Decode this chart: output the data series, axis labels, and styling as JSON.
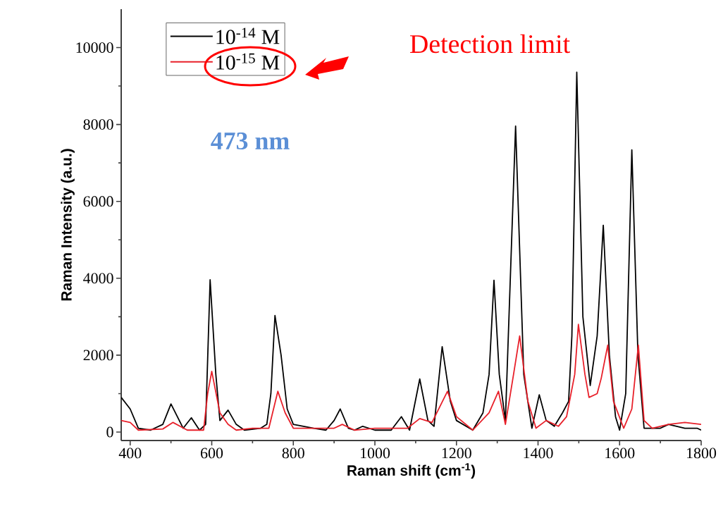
{
  "chart_data": {
    "type": "line",
    "xlabel": "Raman shift (cm$^{-1}$)",
    "ylabel": "Raman Intensity (a.u.)",
    "xlim": [
      378,
      1800
    ],
    "ylim": [
      -220,
      11000
    ],
    "xticks": [
      400,
      600,
      800,
      1000,
      1200,
      1400,
      1600,
      1800
    ],
    "yticks": [
      0,
      2000,
      4000,
      6000,
      8000,
      10000
    ],
    "grid": false,
    "legend": "top left",
    "annotations": [
      "473 nm",
      "Detection limit"
    ],
    "series": [
      {
        "name": "10$^{-14}$ M",
        "color": "#000000",
        "x": [
          378,
          400,
          420,
          450,
          480,
          500,
          530,
          550,
          570,
          585,
          596,
          610,
          620,
          640,
          660,
          680,
          720,
          735,
          745,
          755,
          770,
          785,
          800,
          850,
          880,
          900,
          915,
          935,
          950,
          970,
          1000,
          1040,
          1065,
          1085,
          1110,
          1130,
          1145,
          1165,
          1185,
          1200,
          1240,
          1265,
          1280,
          1292,
          1305,
          1320,
          1345,
          1365,
          1385,
          1403,
          1420,
          1440,
          1460,
          1475,
          1483,
          1495,
          1510,
          1528,
          1545,
          1560,
          1575,
          1590,
          1600,
          1615,
          1630,
          1645,
          1660,
          1700,
          1720,
          1760,
          1790,
          1800
        ],
        "values": [
          900,
          600,
          100,
          50,
          200,
          730,
          100,
          370,
          50,
          200,
          3960,
          1500,
          300,
          570,
          200,
          50,
          100,
          200,
          1000,
          3030,
          2000,
          600,
          200,
          100,
          50,
          300,
          600,
          100,
          50,
          150,
          50,
          50,
          400,
          50,
          1380,
          300,
          150,
          2220,
          800,
          300,
          50,
          500,
          1500,
          3950,
          1500,
          300,
          7960,
          1500,
          100,
          970,
          300,
          150,
          500,
          800,
          2500,
          9360,
          3000,
          1210,
          2500,
          5380,
          2000,
          400,
          50,
          1000,
          7340,
          2000,
          100,
          100,
          200,
          100,
          100,
          50
        ]
      },
      {
        "name": "10$^{-15}$ M",
        "color": "#e8202a",
        "x": [
          378,
          400,
          420,
          480,
          505,
          540,
          580,
          590,
          600,
          620,
          640,
          660,
          700,
          740,
          762,
          780,
          800,
          900,
          920,
          950,
          1000,
          1080,
          1110,
          1140,
          1178,
          1200,
          1240,
          1280,
          1303,
          1320,
          1340,
          1355,
          1375,
          1395,
          1420,
          1450,
          1470,
          1490,
          1499,
          1515,
          1525,
          1545,
          1555,
          1571,
          1585,
          1610,
          1630,
          1646,
          1660,
          1680,
          1720,
          1760,
          1800
        ],
        "values": [
          300,
          250,
          50,
          80,
          250,
          50,
          50,
          1000,
          1580,
          500,
          200,
          50,
          100,
          100,
          1060,
          500,
          100,
          100,
          200,
          50,
          100,
          100,
          350,
          250,
          1060,
          400,
          50,
          500,
          1060,
          200,
          1500,
          2500,
          800,
          100,
          300,
          150,
          400,
          1500,
          2800,
          1500,
          900,
          1000,
          1400,
          2260,
          800,
          100,
          600,
          2260,
          300,
          100,
          200,
          250,
          200
        ]
      }
    ]
  }
}
